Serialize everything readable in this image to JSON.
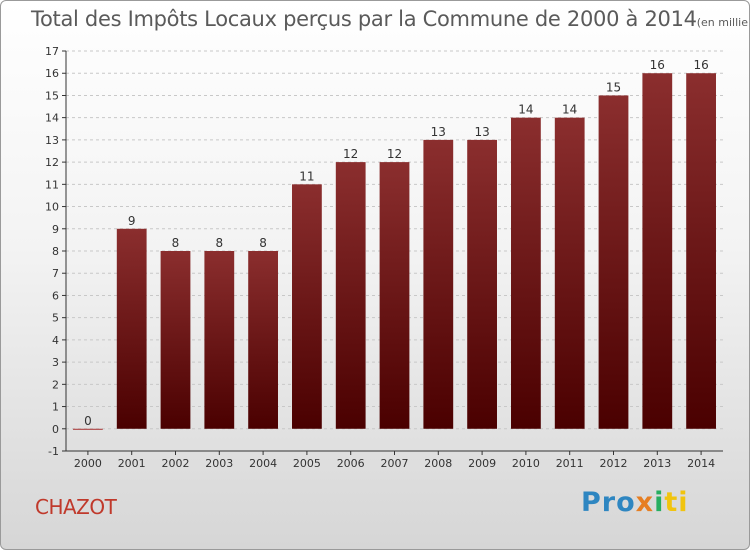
{
  "title": "Total des Impôts Locaux perçus par la Commune de 2000 à 2014",
  "title_unit": "(en milliers d'€)",
  "commune": "CHAZOT",
  "logo": {
    "part1": "Pro",
    "part2": "x",
    "part3": "i",
    "part4": "ti"
  },
  "colors": {
    "bar_top": "#8b2e2e",
    "bar_bottom": "#4a0000",
    "axis": "#333333",
    "grid": "#c8c8c8"
  },
  "chart_data": {
    "type": "bar",
    "title": "Total des Impôts Locaux perçus par la Commune de 2000 à 2014",
    "ylabel": "en milliers d'€",
    "xlabel": "",
    "categories": [
      "2000",
      "2001",
      "2002",
      "2003",
      "2004",
      "2005",
      "2006",
      "2007",
      "2008",
      "2009",
      "2010",
      "2011",
      "2012",
      "2013",
      "2014"
    ],
    "values": [
      0,
      9,
      8,
      8,
      8,
      11,
      12,
      12,
      13,
      13,
      14,
      14,
      15,
      16,
      16
    ],
    "ylim": [
      -1,
      17
    ],
    "yticks": [
      -1,
      0,
      1,
      2,
      3,
      4,
      5,
      6,
      7,
      8,
      9,
      10,
      11,
      12,
      13,
      14,
      15,
      16,
      17
    ],
    "grid": true
  }
}
